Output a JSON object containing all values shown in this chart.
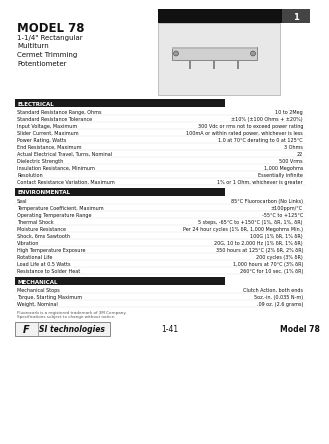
{
  "title": "MODEL 78",
  "subtitle_lines": [
    "1-1/4\" Rectangular",
    "Multiturn",
    "Cermet Trimming",
    "Potentiometer"
  ],
  "page_number": "1",
  "section_electrical": "ELECTRICAL",
  "electrical_specs": [
    [
      "Standard Resistance Range, Ohms",
      "10 to 2Meg"
    ],
    [
      "Standard Resistance Tolerance",
      "±10% (±100 Ohms + ±20%)"
    ],
    [
      "Input Voltage, Maximum",
      "300 Vdc or rms not to exceed power rating"
    ],
    [
      "Slider Current, Maximum",
      "100mA or within rated power, whichever is less"
    ],
    [
      "Power Rating, Watts",
      "1.0 at 70°C derating to 0 at 125°C"
    ],
    [
      "End Resistance, Maximum",
      "3 Ohms"
    ],
    [
      "Actual Electrical Travel, Turns, Nominal",
      "22"
    ],
    [
      "Dielectric Strength",
      "500 Vrms"
    ],
    [
      "Insulation Resistance, Minimum",
      "1,000 Megohms"
    ],
    [
      "Resolution",
      "Essentially infinite"
    ],
    [
      "Contact Resistance Variation, Maximum",
      "1% or 1 Ohm, whichever is greater"
    ]
  ],
  "section_environmental": "ENVIRONMENTAL",
  "environmental_specs": [
    [
      "Seal",
      "85°C Fluorocarbon (No Links)"
    ],
    [
      "Temperature Coefficient, Maximum",
      "±100ppm/°C"
    ],
    [
      "Operating Temperature Range",
      "-55°C to +125°C"
    ],
    [
      "Thermal Shock",
      "5 steps, -65°C to +150°C (1%, δR, 1%, δR)"
    ],
    [
      "Moisture Resistance",
      "Per 24 hour cycles (1% δR, 1,000 Megohms Min.)"
    ],
    [
      "Shock, 6ms Sawtooth",
      "100G (1% δR, 1% δR)"
    ],
    [
      "Vibration",
      "20G, 10 to 2,000 Hz (1% δR, 1% δR)"
    ],
    [
      "High Temperature Exposure",
      "350 hours at 125°C (2% δR, 2% δR)"
    ],
    [
      "Rotational Life",
      "200 cycles (3% δR)"
    ],
    [
      "Load Life at 0.5 Watts",
      "1,000 hours at 70°C (3% δR)"
    ],
    [
      "Resistance to Solder Heat",
      "260°C for 10 sec. (1% δR)"
    ]
  ],
  "section_mechanical": "MECHANICAL",
  "mechanical_specs": [
    [
      "Mechanical Stops",
      "Clutch Action, both ends"
    ],
    [
      "Torque, Starting Maximum",
      "5oz.-in. (0.035 N-m)"
    ],
    [
      "Weight, Nominal",
      ".09 oz. (2.6 grams)"
    ]
  ],
  "footer_note1": "Fluorocarb is a registered trademark of 3M Company.",
  "footer_note2": "Specifications subject to change without notice.",
  "footer_left": "1-41",
  "footer_right": "Model 78",
  "bg_color": "#ffffff",
  "section_bg": "#1a1a1a",
  "section_text_color": "#ffffff",
  "body_text_color": "#111111",
  "header_black": "#111111",
  "page_box_color": "#444444"
}
